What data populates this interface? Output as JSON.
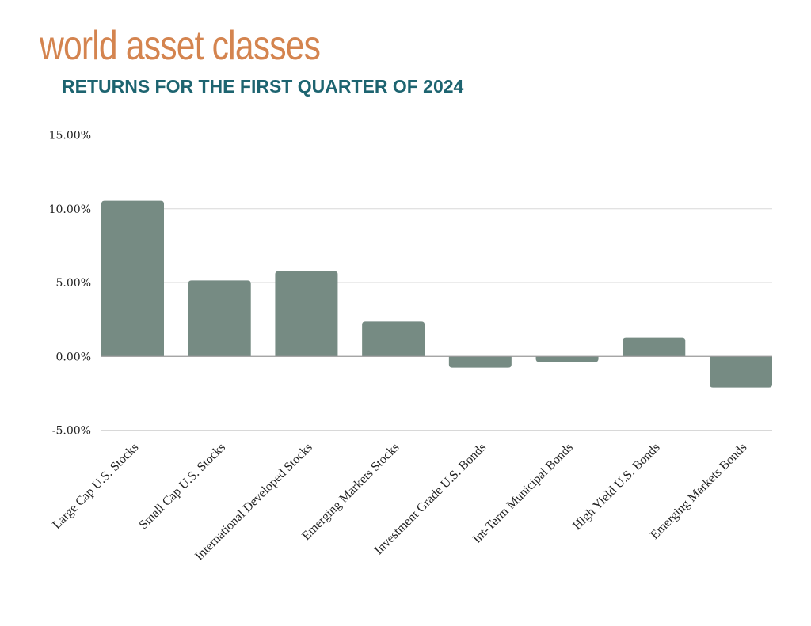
{
  "chart_data": {
    "type": "bar",
    "title": "world asset classes",
    "subtitle": "RETURNS FOR THE FIRST QUARTER OF 2024",
    "categories": [
      "Large Cap U.S. Stocks",
      "Small Cap U.S. Stocks",
      "International Developed Stocks",
      "Emerging Markets Stocks",
      "Investment Grade U.S. Bonds",
      "Int-Term Municipal Bonds",
      "High Yield U.S. Bonds",
      "Emerging Markets Bonds"
    ],
    "values": [
      10.54,
      5.14,
      5.77,
      2.35,
      -0.77,
      -0.38,
      1.27,
      -2.11
    ],
    "ylim": [
      -5,
      15
    ],
    "yticks": [
      15,
      10,
      5,
      0,
      -5
    ],
    "ytick_labels": [
      "15.00%",
      "10.00%",
      "5.00%",
      "0.00%",
      "-5.00%"
    ],
    "xlabel": "",
    "ylabel": "",
    "grid": true,
    "legend": "none",
    "bar_color": "#768b83",
    "title_color": "#d4844f",
    "subtitle_color": "#1d6470"
  }
}
